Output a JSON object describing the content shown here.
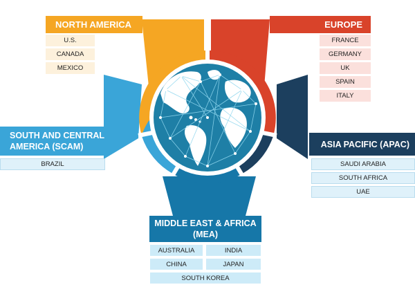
{
  "regions": {
    "north_america": {
      "title": "NORTH AMERICA",
      "color": "#f5a623",
      "countries": [
        "U.S.",
        "CANADA",
        "MEXICO"
      ]
    },
    "europe": {
      "title": "EUROPE",
      "color": "#d9432a",
      "countries": [
        "FRANCE",
        "GERMANY",
        "UK",
        "SPAIN",
        "ITALY"
      ]
    },
    "south_central_america": {
      "title_line1": "SOUTH AND CENTRAL",
      "title_line2": "AMERICA (SCAM)",
      "color": "#3aa5d8",
      "countries": [
        "BRAZIL"
      ]
    },
    "asia_pacific": {
      "title": "ASIA PACIFIC (APAC)",
      "color": "#1c3f5e",
      "countries": [
        "SAUDI ARABIA",
        "SOUTH AFRICA",
        "UAE"
      ]
    },
    "middle_east_africa": {
      "title_line1": "MIDDLE EAST & AFRICA",
      "title_line2": "(MEA)",
      "color": "#1677a8",
      "countries": [
        "AUSTRALIA",
        "INDIA",
        "CHINA",
        "JAPAN",
        "SOUTH KOREA"
      ]
    }
  },
  "globe": {
    "ocean_color": "#1e7fa6",
    "land_color": "#ffffff",
    "network_color": "#8fd6ee"
  }
}
